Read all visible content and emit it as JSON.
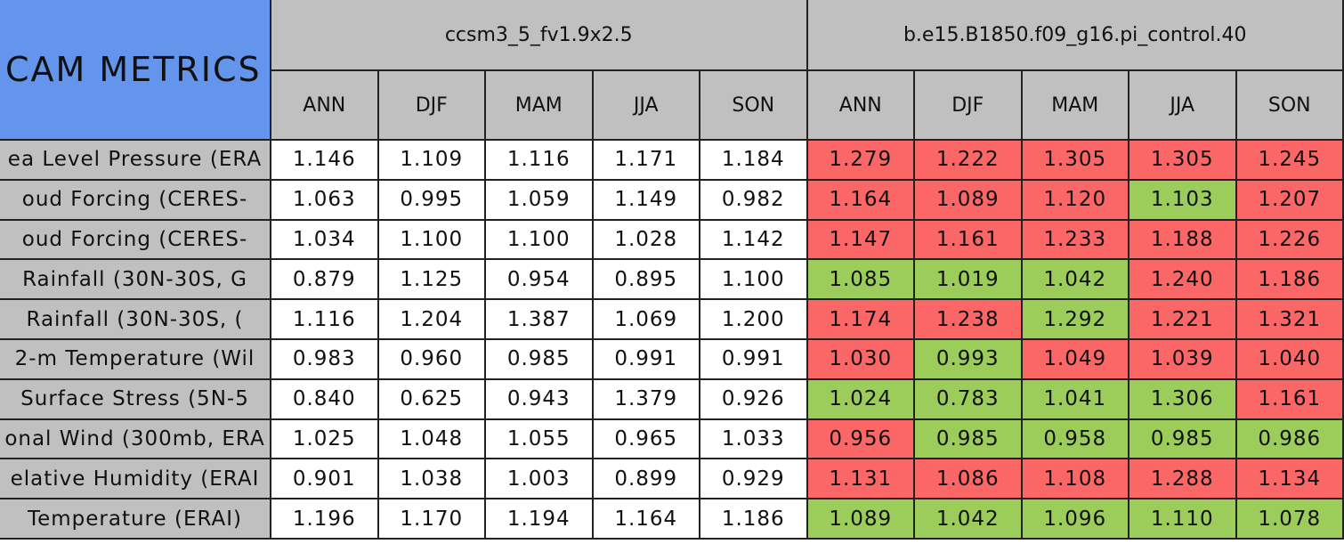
{
  "table": {
    "corner": "CAM METRICS",
    "models": [
      "ccsm3_5_fv1.9x2.5",
      "b.e15.B1850.f09_g16.pi_control.40"
    ],
    "seasons": [
      "ANN",
      "DJF",
      "MAM",
      "JJA",
      "SON",
      "ANN",
      "DJF",
      "MAM",
      "JJA",
      "SON"
    ],
    "rows": [
      {
        "label": "ea Level Pressure (ERA",
        "values": [
          "1.146",
          "1.109",
          "1.116",
          "1.171",
          "1.184",
          "1.279",
          "1.222",
          "1.305",
          "1.305",
          "1.245"
        ],
        "colors": [
          "#ffffff",
          "#ffffff",
          "#ffffff",
          "#ffffff",
          "#ffffff",
          "#fb6767",
          "#fb6767",
          "#fb6767",
          "#fb6767",
          "#fb6767"
        ]
      },
      {
        "label": "oud Forcing (CERES-",
        "values": [
          "1.063",
          "0.995",
          "1.059",
          "1.149",
          "0.982",
          "1.164",
          "1.089",
          "1.120",
          "1.103",
          "1.207"
        ],
        "colors": [
          "#ffffff",
          "#ffffff",
          "#ffffff",
          "#ffffff",
          "#ffffff",
          "#fb6767",
          "#fb6767",
          "#fb6767",
          "#9ccc5a",
          "#fb6767"
        ]
      },
      {
        "label": "oud Forcing (CERES-",
        "values": [
          "1.034",
          "1.100",
          "1.100",
          "1.028",
          "1.142",
          "1.147",
          "1.161",
          "1.233",
          "1.188",
          "1.226"
        ],
        "colors": [
          "#ffffff",
          "#ffffff",
          "#ffffff",
          "#ffffff",
          "#ffffff",
          "#fb6767",
          "#fb6767",
          "#fb6767",
          "#fb6767",
          "#fb6767"
        ]
      },
      {
        "label": "Rainfall (30N-30S, G",
        "values": [
          "0.879",
          "1.125",
          "0.954",
          "0.895",
          "1.100",
          "1.085",
          "1.019",
          "1.042",
          "1.240",
          "1.186"
        ],
        "colors": [
          "#ffffff",
          "#ffffff",
          "#ffffff",
          "#ffffff",
          "#ffffff",
          "#9ccc5a",
          "#9ccc5a",
          "#9ccc5a",
          "#fb6767",
          "#fb6767"
        ]
      },
      {
        "label": "Rainfall (30N-30S, (",
        "values": [
          "1.116",
          "1.204",
          "1.387",
          "1.069",
          "1.200",
          "1.174",
          "1.238",
          "1.292",
          "1.221",
          "1.321"
        ],
        "colors": [
          "#ffffff",
          "#ffffff",
          "#ffffff",
          "#ffffff",
          "#ffffff",
          "#fb6767",
          "#fb6767",
          "#9ccc5a",
          "#fb6767",
          "#fb6767"
        ]
      },
      {
        "label": "2-m Temperature (Wil",
        "values": [
          "0.983",
          "0.960",
          "0.985",
          "0.991",
          "0.991",
          "1.030",
          "0.993",
          "1.049",
          "1.039",
          "1.040"
        ],
        "colors": [
          "#ffffff",
          "#ffffff",
          "#ffffff",
          "#ffffff",
          "#ffffff",
          "#fb6767",
          "#9ccc5a",
          "#fb6767",
          "#fb6767",
          "#fb6767"
        ]
      },
      {
        "label": "Surface Stress (5N-5",
        "values": [
          "0.840",
          "0.625",
          "0.943",
          "1.379",
          "0.926",
          "1.024",
          "0.783",
          "1.041",
          "1.306",
          "1.161"
        ],
        "colors": [
          "#ffffff",
          "#ffffff",
          "#ffffff",
          "#ffffff",
          "#ffffff",
          "#9ccc5a",
          "#9ccc5a",
          "#9ccc5a",
          "#9ccc5a",
          "#fb6767"
        ]
      },
      {
        "label": "onal Wind (300mb, ERA",
        "values": [
          "1.025",
          "1.048",
          "1.055",
          "0.965",
          "1.033",
          "0.956",
          "0.985",
          "0.958",
          "0.985",
          "0.986"
        ],
        "colors": [
          "#ffffff",
          "#ffffff",
          "#ffffff",
          "#ffffff",
          "#ffffff",
          "#fb6767",
          "#9ccc5a",
          "#9ccc5a",
          "#9ccc5a",
          "#9ccc5a"
        ]
      },
      {
        "label": "elative Humidity (ERAI",
        "values": [
          "0.901",
          "1.038",
          "1.003",
          "0.899",
          "0.929",
          "1.131",
          "1.086",
          "1.108",
          "1.288",
          "1.134"
        ],
        "colors": [
          "#ffffff",
          "#ffffff",
          "#ffffff",
          "#ffffff",
          "#ffffff",
          "#fb6767",
          "#fb6767",
          "#fb6767",
          "#fb6767",
          "#fb6767"
        ]
      },
      {
        "label": "Temperature (ERAI)",
        "values": [
          "1.196",
          "1.170",
          "1.194",
          "1.164",
          "1.186",
          "1.089",
          "1.042",
          "1.096",
          "1.110",
          "1.078"
        ],
        "colors": [
          "#ffffff",
          "#ffffff",
          "#ffffff",
          "#ffffff",
          "#ffffff",
          "#9ccc5a",
          "#9ccc5a",
          "#9ccc5a",
          "#9ccc5a",
          "#9ccc5a"
        ]
      }
    ]
  }
}
